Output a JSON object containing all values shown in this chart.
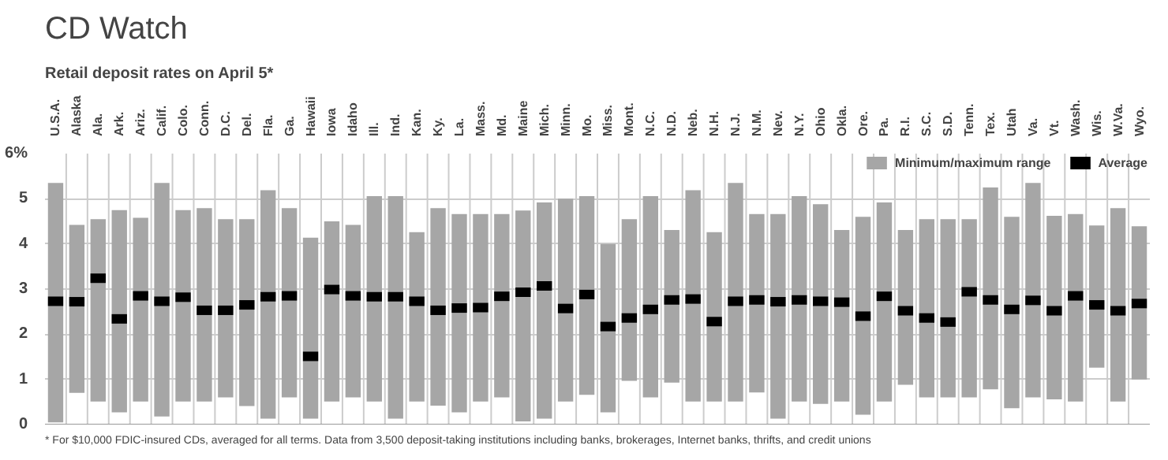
{
  "chart_data": {
    "type": "bar",
    "title": "CD Watch",
    "subtitle": "Retail deposit rates on April 5*",
    "categories": [
      "U.S.A.",
      "Alaska",
      "Ala.",
      "Ark.",
      "Ariz.",
      "Calif.",
      "Colo.",
      "Conn.",
      "D.C.",
      "Del.",
      "Fla.",
      "Ga.",
      "Hawaii",
      "Iowa",
      "Idaho",
      "Ill.",
      "Ind.",
      "Kan.",
      "Ky.",
      "La.",
      "Mass.",
      "Md.",
      "Maine",
      "Mich.",
      "Minn.",
      "Mo.",
      "Miss.",
      "Mont.",
      "N.C.",
      "N.D.",
      "Neb.",
      "N.H.",
      "N.J.",
      "N.M.",
      "Nev.",
      "N.Y.",
      "Ohio",
      "Okla.",
      "Ore.",
      "Pa.",
      "R.I.",
      "S.C.",
      "S.D.",
      "Tenn.",
      "Tex.",
      "Utah",
      "Va.",
      "Vt.",
      "Wash.",
      "Wis.",
      "W.Va.",
      "Wyo."
    ],
    "series": [
      {
        "name": "Minimum/maximum range",
        "type": "bar",
        "color": "#a6a6a6",
        "base": [
          0.05,
          0.7,
          0.51,
          0.27,
          0.51,
          0.18,
          0.51,
          0.51,
          0.6,
          0.41,
          0.13,
          0.6,
          0.13,
          0.51,
          0.6,
          0.51,
          0.13,
          0.51,
          0.42,
          0.27,
          0.51,
          0.6,
          0.07,
          0.13,
          0.51,
          0.66,
          0.27,
          0.97,
          0.6,
          0.93,
          0.51,
          0.51,
          0.51,
          0.71,
          0.13,
          0.51,
          0.46,
          0.51,
          0.22,
          0.51,
          0.88,
          0.6,
          0.6,
          0.6,
          0.78,
          0.36,
          0.6,
          0.56,
          0.51,
          1.26,
          0.51,
          1.0
        ],
        "values": [
          5.3,
          3.72,
          4.04,
          4.48,
          4.07,
          5.17,
          4.24,
          4.28,
          3.95,
          4.14,
          5.06,
          4.19,
          4.01,
          3.99,
          3.82,
          4.55,
          4.93,
          3.75,
          4.37,
          4.39,
          4.15,
          4.06,
          4.67,
          4.79,
          4.49,
          4.4,
          3.73,
          3.58,
          4.46,
          3.38,
          4.68,
          3.75,
          4.84,
          3.95,
          4.53,
          4.55,
          4.42,
          3.8,
          4.38,
          4.41,
          3.43,
          3.95,
          3.95,
          3.95,
          4.47,
          4.24,
          4.75,
          4.06,
          4.15,
          3.15,
          4.28,
          3.39
        ]
      },
      {
        "name": "Average",
        "type": "scatter",
        "marker": "square",
        "color": "#000000",
        "values": [
          2.73,
          2.72,
          3.24,
          2.34,
          2.85,
          2.73,
          2.82,
          2.53,
          2.53,
          2.65,
          2.83,
          2.85,
          1.51,
          2.99,
          2.85,
          2.83,
          2.83,
          2.73,
          2.53,
          2.58,
          2.59,
          2.84,
          2.93,
          3.07,
          2.57,
          2.88,
          2.17,
          2.36,
          2.55,
          2.76,
          2.78,
          2.28,
          2.73,
          2.76,
          2.72,
          2.76,
          2.73,
          2.71,
          2.4,
          2.84,
          2.52,
          2.36,
          2.27,
          2.94,
          2.76,
          2.55,
          2.75,
          2.52,
          2.85,
          2.65,
          2.52,
          2.68
        ]
      }
    ],
    "ylim": [
      0,
      6
    ],
    "yticks": [
      0,
      1,
      2,
      3,
      4,
      5,
      {
        "value": 6,
        "label": "6%"
      }
    ],
    "grid": "y",
    "legend": "top right",
    "annotations": [
      "* For $10,000 FDIC-insured CDs, averaged for all terms. Data from 3,500 deposit-taking institutions including banks, brokerages, Internet banks, thrifts, and credit unions"
    ]
  }
}
